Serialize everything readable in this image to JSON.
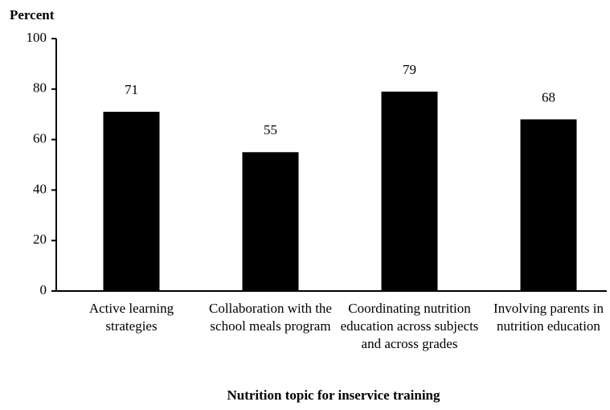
{
  "chart_data": {
    "type": "bar",
    "y_axis_label": "Percent",
    "x_axis_label": "Nutrition topic for inservice training",
    "categories": [
      "Active learning strategies",
      "Collaboration with the school meals program",
      "Coordinating nutrition education across subjects and across grades",
      "Involving parents in nutrition education"
    ],
    "values": [
      71,
      55,
      79,
      68
    ],
    "color": "#000000",
    "ylim": [
      0,
      100
    ],
    "yticks": [
      0,
      20,
      40,
      60,
      80,
      100
    ],
    "grid": false
  }
}
